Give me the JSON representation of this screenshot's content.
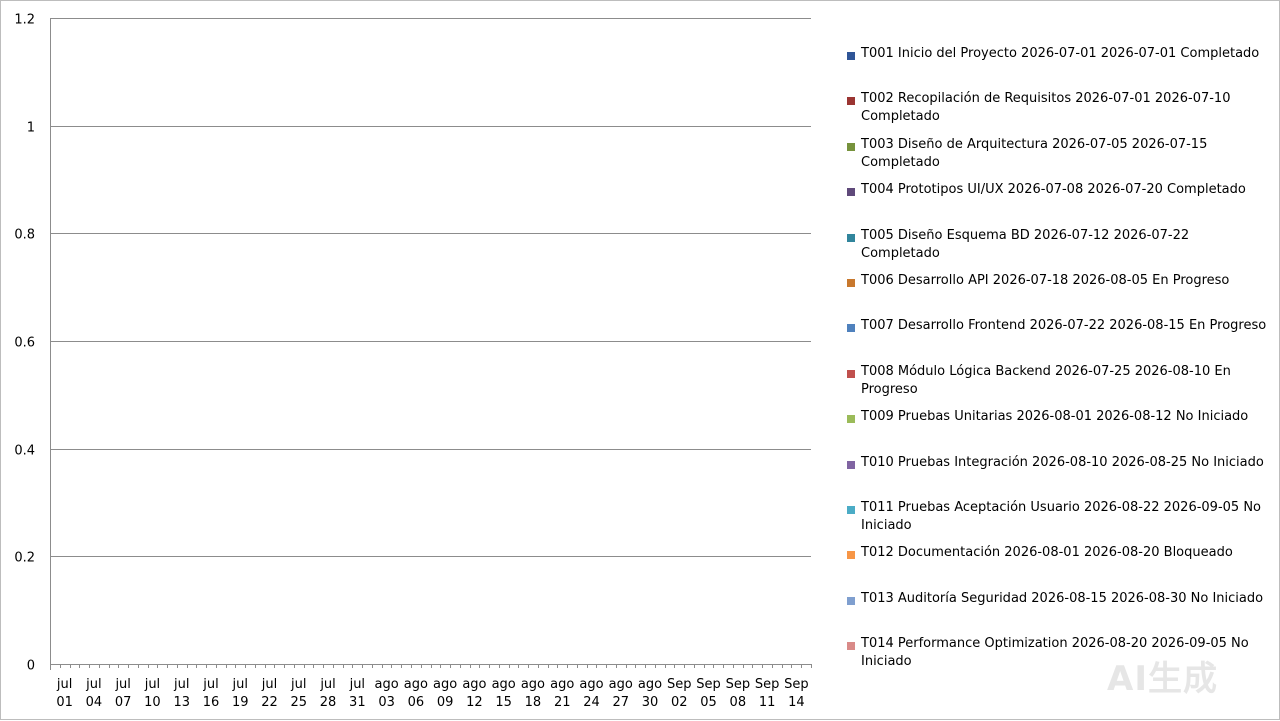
{
  "chart_data": {
    "type": "bar",
    "y_ticks": [
      "0",
      "0.2",
      "0.4",
      "0.6",
      "0.8",
      "1",
      "1.2"
    ],
    "ylim": [
      0,
      1.2
    ],
    "grid": true,
    "legend_position": "right",
    "x_ticks": [
      {
        "month": "jul",
        "day": "01"
      },
      {
        "month": "jul",
        "day": "04"
      },
      {
        "month": "jul",
        "day": "07"
      },
      {
        "month": "jul",
        "day": "10"
      },
      {
        "month": "jul",
        "day": "13"
      },
      {
        "month": "jul",
        "day": "16"
      },
      {
        "month": "jul",
        "day": "19"
      },
      {
        "month": "jul",
        "day": "22"
      },
      {
        "month": "jul",
        "day": "25"
      },
      {
        "month": "jul",
        "day": "28"
      },
      {
        "month": "jul",
        "day": "31"
      },
      {
        "month": "ago",
        "day": "03"
      },
      {
        "month": "ago",
        "day": "06"
      },
      {
        "month": "ago",
        "day": "09"
      },
      {
        "month": "ago",
        "day": "12"
      },
      {
        "month": "ago",
        "day": "15"
      },
      {
        "month": "ago",
        "day": "18"
      },
      {
        "month": "ago",
        "day": "21"
      },
      {
        "month": "ago",
        "day": "24"
      },
      {
        "month": "ago",
        "day": "27"
      },
      {
        "month": "ago",
        "day": "30"
      },
      {
        "month": "Sep",
        "day": "02"
      },
      {
        "month": "Sep",
        "day": "05"
      },
      {
        "month": "Sep",
        "day": "08"
      },
      {
        "month": "Sep",
        "day": "11"
      },
      {
        "month": "Sep",
        "day": "14"
      }
    ],
    "series": [
      {
        "name": "T001 Inicio del Proyecto 2026-07-01 2026-07-01 Completado",
        "color": "#2f5597"
      },
      {
        "name": "T002 Recopilación de Requisitos 2026-07-01 2026-07-10 Completado",
        "color": "#9b3532"
      },
      {
        "name": "T003 Diseño de Arquitectura 2026-07-05 2026-07-15 Completado",
        "color": "#76923c"
      },
      {
        "name": "T004 Prototipos UI/UX 2026-07-08 2026-07-20 Completado",
        "color": "#5f497a"
      },
      {
        "name": "T005 Diseño Esquema BD 2026-07-12 2026-07-22 Completado",
        "color": "#31859c"
      },
      {
        "name": "T006 Desarrollo API 2026-07-18 2026-08-05 En Progreso",
        "color": "#c8782d"
      },
      {
        "name": "T007 Desarrollo Frontend 2026-07-22 2026-08-15 En Progreso",
        "color": "#4f81bd"
      },
      {
        "name": "T008 Módulo Lógica Backend 2026-07-25 2026-08-10 En Progreso",
        "color": "#c0504d"
      },
      {
        "name": "T009 Pruebas Unitarias 2026-08-01 2026-08-12 No Iniciado",
        "color": "#9bbb59"
      },
      {
        "name": "T010 Pruebas Integración 2026-08-10 2026-08-25 No Iniciado",
        "color": "#8064a2"
      },
      {
        "name": "T011 Pruebas Aceptación Usuario 2026-08-22 2026-09-05 No Iniciado",
        "color": "#4bacc6"
      },
      {
        "name": "T012 Documentación 2026-08-01 2026-08-20 Bloqueado",
        "color": "#f79646"
      },
      {
        "name": "T013 Auditoría Seguridad 2026-08-15 2026-08-30 No Iniciado",
        "color": "#7f9fcf"
      },
      {
        "name": "T014 Performance Optimization 2026-08-20 2026-09-05 No Iniciado",
        "color": "#d98a88"
      }
    ]
  },
  "watermark": "AI生成"
}
